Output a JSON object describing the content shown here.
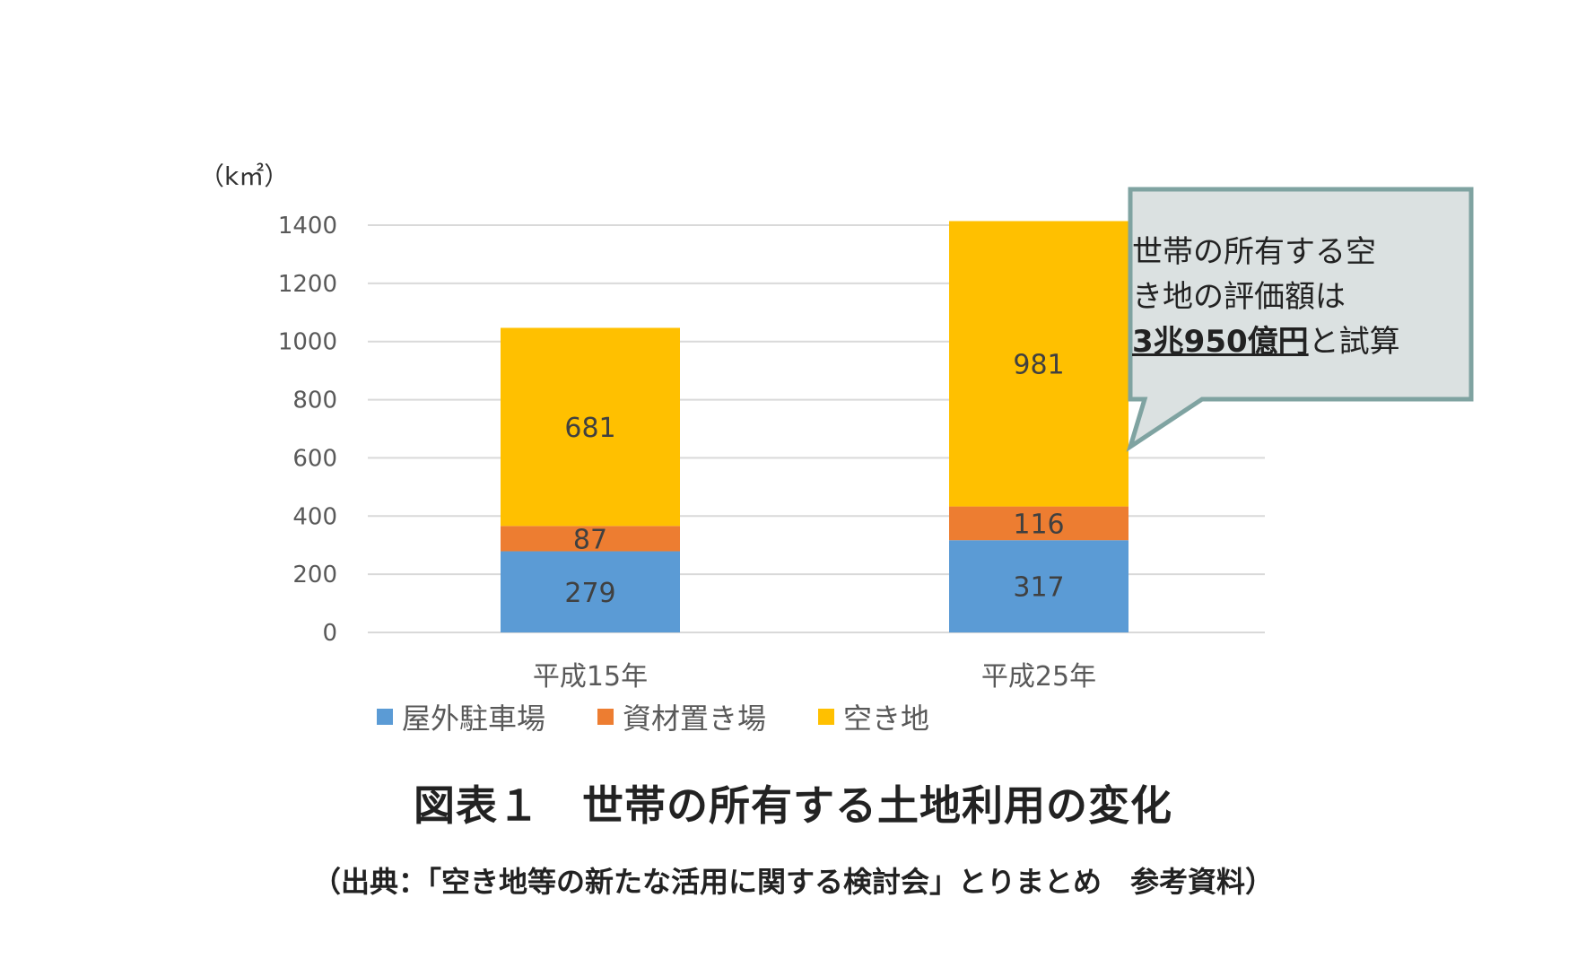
{
  "chart_data": {
    "type": "bar",
    "stacked": true,
    "categories": [
      "平成15年",
      "平成25年"
    ],
    "series": [
      {
        "name": "屋外駐車場",
        "color": "#5B9BD5",
        "values": [
          279,
          317
        ]
      },
      {
        "name": "資材置き場",
        "color": "#ED7D31",
        "values": [
          87,
          116
        ]
      },
      {
        "name": "空き地",
        "color": "#FFC000",
        "values": [
          681,
          981
        ]
      }
    ],
    "ylabel": "（k㎡）",
    "ylim": [
      0,
      1400
    ],
    "yticks": [
      0,
      200,
      400,
      600,
      800,
      1000,
      1200,
      1400
    ],
    "grid": true,
    "legend_position": "bottom-left",
    "annotation": {
      "line1": "世帯の所有する空",
      "line2": "き地の評価額は",
      "emphasis": "3兆950億円",
      "suffix": "と試算"
    }
  },
  "figure_title": "図表１　世帯の所有する土地利用の変化",
  "source": "（出典：「空き地等の新たな活用に関する検討会」とりまとめ　参考資料）"
}
